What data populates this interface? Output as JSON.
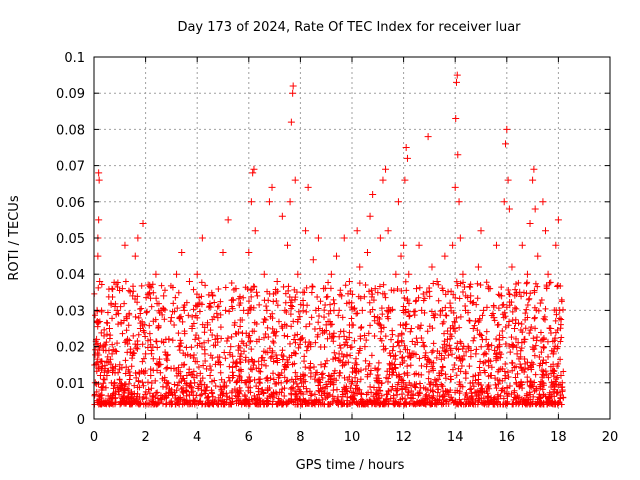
{
  "chart_data": {
    "type": "scatter",
    "title": "Day 173 of 2024, Rate Of TEC Index for receiver luar",
    "xlabel": "GPS time / hours",
    "ylabel": "ROTI / TECUs",
    "xlim": [
      0,
      20
    ],
    "ylim": [
      0,
      0.1
    ],
    "x_ticks": [
      0,
      2,
      4,
      6,
      8,
      10,
      12,
      14,
      16,
      18,
      20
    ],
    "x_tick_labels": [
      "0",
      "2",
      "4",
      "6",
      "8",
      "10",
      "12",
      "14",
      "16",
      "18",
      "20"
    ],
    "y_ticks": [
      0,
      0.01,
      0.02,
      0.03,
      0.04,
      0.05,
      0.06,
      0.07,
      0.08,
      0.09,
      0.1
    ],
    "y_tick_labels": [
      "0",
      "0.01",
      "0.02",
      "0.03",
      "0.04",
      "0.05",
      "0.06",
      "0.07",
      "0.08",
      "0.09",
      "0.1"
    ],
    "grid": true,
    "legend": "none",
    "marker": "+",
    "series": [
      {
        "color": "#ff0000",
        "points": [
          [
            0.05,
            0.01
          ],
          [
            0.08,
            0.015
          ],
          [
            0.1,
            0.022
          ],
          [
            0.12,
            0.03
          ],
          [
            0.15,
            0.045
          ],
          [
            0.15,
            0.05
          ],
          [
            0.18,
            0.055
          ],
          [
            0.18,
            0.068
          ],
          [
            0.2,
            0.066
          ],
          [
            0.22,
            0.038
          ],
          [
            0.25,
            0.012
          ],
          [
            0.3,
            0.008
          ],
          [
            0.35,
            0.02
          ],
          [
            0.5,
            0.012
          ],
          [
            0.6,
            0.025
          ],
          [
            0.7,
            0.018
          ],
          [
            0.8,
            0.01
          ],
          [
            0.9,
            0.03
          ],
          [
            1.0,
            0.015
          ],
          [
            1.1,
            0.036
          ],
          [
            1.2,
            0.048
          ],
          [
            1.3,
            0.022
          ],
          [
            1.4,
            0.012
          ],
          [
            1.5,
            0.034
          ],
          [
            1.6,
            0.045
          ],
          [
            1.7,
            0.05
          ],
          [
            1.8,
            0.025
          ],
          [
            1.9,
            0.054
          ],
          [
            2.0,
            0.018
          ],
          [
            2.1,
            0.037
          ],
          [
            2.2,
            0.012
          ],
          [
            2.3,
            0.027
          ],
          [
            2.4,
            0.04
          ],
          [
            2.5,
            0.015
          ],
          [
            2.6,
            0.03
          ],
          [
            2.7,
            0.034
          ],
          [
            2.8,
            0.01
          ],
          [
            2.9,
            0.022
          ],
          [
            3.0,
            0.028
          ],
          [
            3.1,
            0.014
          ],
          [
            3.2,
            0.04
          ],
          [
            3.3,
            0.02
          ],
          [
            3.4,
            0.046
          ],
          [
            3.5,
            0.03
          ],
          [
            3.6,
            0.012
          ],
          [
            3.7,
            0.038
          ],
          [
            3.8,
            0.025
          ],
          [
            3.9,
            0.01
          ],
          [
            4.0,
            0.04
          ],
          [
            4.1,
            0.032
          ],
          [
            4.2,
            0.05
          ],
          [
            4.3,
            0.018
          ],
          [
            4.4,
            0.026
          ],
          [
            4.5,
            0.012
          ],
          [
            4.6,
            0.034
          ],
          [
            4.7,
            0.022
          ],
          [
            4.8,
            0.028
          ],
          [
            4.9,
            0.015
          ],
          [
            5.0,
            0.046
          ],
          [
            5.1,
            0.03
          ],
          [
            5.2,
            0.055
          ],
          [
            5.3,
            0.02
          ],
          [
            5.4,
            0.012
          ],
          [
            5.5,
            0.036
          ],
          [
            5.6,
            0.024
          ],
          [
            5.7,
            0.018
          ],
          [
            5.8,
            0.03
          ],
          [
            5.9,
            0.01
          ],
          [
            6.0,
            0.046
          ],
          [
            6.1,
            0.06
          ],
          [
            6.15,
            0.068
          ],
          [
            6.2,
            0.069
          ],
          [
            6.25,
            0.052
          ],
          [
            6.3,
            0.035
          ],
          [
            6.4,
            0.022
          ],
          [
            6.5,
            0.015
          ],
          [
            6.6,
            0.04
          ],
          [
            6.7,
            0.03
          ],
          [
            6.8,
            0.06
          ],
          [
            6.9,
            0.064
          ],
          [
            7.0,
            0.024
          ],
          [
            7.1,
            0.038
          ],
          [
            7.2,
            0.012
          ],
          [
            7.3,
            0.056
          ],
          [
            7.4,
            0.03
          ],
          [
            7.5,
            0.048
          ],
          [
            7.6,
            0.06
          ],
          [
            7.65,
            0.082
          ],
          [
            7.7,
            0.09
          ],
          [
            7.72,
            0.092
          ],
          [
            7.8,
            0.066
          ],
          [
            7.9,
            0.04
          ],
          [
            8.0,
            0.022
          ],
          [
            8.1,
            0.035
          ],
          [
            8.2,
            0.052
          ],
          [
            8.3,
            0.064
          ],
          [
            8.4,
            0.02
          ],
          [
            8.5,
            0.044
          ],
          [
            8.6,
            0.03
          ],
          [
            8.7,
            0.05
          ],
          [
            8.8,
            0.015
          ],
          [
            8.9,
            0.036
          ],
          [
            9.0,
            0.026
          ],
          [
            9.1,
            0.012
          ],
          [
            9.2,
            0.04
          ],
          [
            9.3,
            0.03
          ],
          [
            9.4,
            0.045
          ],
          [
            9.5,
            0.018
          ],
          [
            9.6,
            0.034
          ],
          [
            9.7,
            0.05
          ],
          [
            9.8,
            0.022
          ],
          [
            9.9,
            0.038
          ],
          [
            10.0,
            0.026
          ],
          [
            10.1,
            0.014
          ],
          [
            10.2,
            0.052
          ],
          [
            10.3,
            0.042
          ],
          [
            10.4,
            0.03
          ],
          [
            10.5,
            0.02
          ],
          [
            10.6,
            0.046
          ],
          [
            10.7,
            0.056
          ],
          [
            10.8,
            0.062
          ],
          [
            10.9,
            0.036
          ],
          [
            11.0,
            0.028
          ],
          [
            11.1,
            0.05
          ],
          [
            11.2,
            0.066
          ],
          [
            11.3,
            0.069
          ],
          [
            11.4,
            0.052
          ],
          [
            11.5,
            0.03
          ],
          [
            11.6,
            0.02
          ],
          [
            11.7,
            0.04
          ],
          [
            11.8,
            0.06
          ],
          [
            11.9,
            0.045
          ],
          [
            12.0,
            0.048
          ],
          [
            12.05,
            0.066
          ],
          [
            12.1,
            0.075
          ],
          [
            12.15,
            0.072
          ],
          [
            12.2,
            0.04
          ],
          [
            12.3,
            0.025
          ],
          [
            12.4,
            0.018
          ],
          [
            12.5,
            0.036
          ],
          [
            12.6,
            0.048
          ],
          [
            12.7,
            0.03
          ],
          [
            12.8,
            0.02
          ],
          [
            12.9,
            0.035
          ],
          [
            12.95,
            0.078
          ],
          [
            13.0,
            0.016
          ],
          [
            13.1,
            0.042
          ],
          [
            13.2,
            0.028
          ],
          [
            13.3,
            0.038
          ],
          [
            13.4,
            0.012
          ],
          [
            13.5,
            0.03
          ],
          [
            13.6,
            0.045
          ],
          [
            13.7,
            0.022
          ],
          [
            13.8,
            0.032
          ],
          [
            13.9,
            0.048
          ],
          [
            14.0,
            0.064
          ],
          [
            14.02,
            0.083
          ],
          [
            14.05,
            0.093
          ],
          [
            14.08,
            0.095
          ],
          [
            14.1,
            0.073
          ],
          [
            14.15,
            0.06
          ],
          [
            14.2,
            0.05
          ],
          [
            14.3,
            0.04
          ],
          [
            14.4,
            0.03
          ],
          [
            14.5,
            0.02
          ],
          [
            14.6,
            0.034
          ],
          [
            14.7,
            0.025
          ],
          [
            14.8,
            0.018
          ],
          [
            14.9,
            0.042
          ],
          [
            15.0,
            0.052
          ],
          [
            15.1,
            0.03
          ],
          [
            15.2,
            0.022
          ],
          [
            15.3,
            0.036
          ],
          [
            15.4,
            0.012
          ],
          [
            15.5,
            0.028
          ],
          [
            15.6,
            0.048
          ],
          [
            15.7,
            0.02
          ],
          [
            15.8,
            0.034
          ],
          [
            15.9,
            0.06
          ],
          [
            15.95,
            0.076
          ],
          [
            16.0,
            0.08
          ],
          [
            16.05,
            0.066
          ],
          [
            16.1,
            0.058
          ],
          [
            16.2,
            0.042
          ],
          [
            16.3,
            0.025
          ],
          [
            16.4,
            0.018
          ],
          [
            16.5,
            0.035
          ],
          [
            16.6,
            0.048
          ],
          [
            16.7,
            0.022
          ],
          [
            16.8,
            0.04
          ],
          [
            16.9,
            0.054
          ],
          [
            17.0,
            0.066
          ],
          [
            17.05,
            0.069
          ],
          [
            17.1,
            0.058
          ],
          [
            17.2,
            0.045
          ],
          [
            17.3,
            0.032
          ],
          [
            17.4,
            0.06
          ],
          [
            17.5,
            0.052
          ],
          [
            17.6,
            0.04
          ],
          [
            17.7,
            0.025
          ],
          [
            17.8,
            0.018
          ],
          [
            17.9,
            0.048
          ],
          [
            18.0,
            0.055
          ],
          [
            18.05,
            0.03
          ],
          [
            18.1,
            0.012
          ],
          [
            18.15,
            0.008
          ]
        ]
      }
    ]
  }
}
